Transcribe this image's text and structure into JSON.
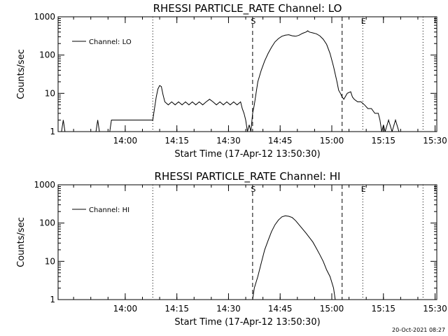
{
  "stamp": "20-Oct-2021 08:27",
  "chart_data": [
    {
      "type": "line",
      "title": "RHESSI PARTICLE_RATE Channel: LO",
      "xlabel": "Start Time (17-Apr-12 13:50:30)",
      "ylabel": "Counts/sec",
      "yscale": "log",
      "ylim": [
        1,
        1000
      ],
      "xlim_min": [
        -10,
        100
      ],
      "xticks": [
        {
          "v": 9.5,
          "label": "14:00"
        },
        {
          "v": 24.5,
          "label": "14:15"
        },
        {
          "v": 39.5,
          "label": "14:30"
        },
        {
          "v": 54.5,
          "label": "14:45"
        },
        {
          "v": 69.5,
          "label": "15:00"
        },
        {
          "v": 84.5,
          "label": "15:15"
        },
        {
          "v": 99.5,
          "label": "15:30"
        }
      ],
      "yticks": [
        {
          "v": 1,
          "label": "1"
        },
        {
          "v": 10,
          "label": "10"
        },
        {
          "v": 100,
          "label": "100"
        },
        {
          "v": 1000,
          "label": "1000"
        }
      ],
      "legend": {
        "label": "Channel: LO",
        "position": "top-left"
      },
      "vlines": [
        {
          "x": 17.5,
          "style": "dotted",
          "label": ""
        },
        {
          "x": 46.5,
          "style": "dashed",
          "label": "S"
        },
        {
          "x": 72.5,
          "style": "dashed",
          "label": ""
        },
        {
          "x": 78.5,
          "style": "dotted",
          "label": "E"
        },
        {
          "x": 96.0,
          "style": "dotted",
          "label": ""
        }
      ],
      "series": [
        {
          "name": "Channel: LO",
          "points": [
            [
              -10,
              1
            ],
            [
              -9,
              1
            ],
            [
              -8.5,
              2
            ],
            [
              -8,
              1
            ],
            [
              -6,
              1
            ],
            [
              -4,
              1
            ],
            [
              0,
              1
            ],
            [
              1,
              1
            ],
            [
              1.5,
              2
            ],
            [
              2,
              1
            ],
            [
              5,
              1
            ],
            [
              5.5,
              2
            ],
            [
              10,
              2
            ],
            [
              13,
              2
            ],
            [
              16,
              2
            ],
            [
              17.5,
              2
            ],
            [
              18,
              4
            ],
            [
              18.5,
              8
            ],
            [
              19,
              13
            ],
            [
              19.5,
              16
            ],
            [
              20,
              15
            ],
            [
              20.5,
              9
            ],
            [
              21,
              6
            ],
            [
              22,
              5
            ],
            [
              23,
              6
            ],
            [
              24,
              5
            ],
            [
              25,
              6
            ],
            [
              26,
              5
            ],
            [
              27,
              6
            ],
            [
              28,
              5
            ],
            [
              29,
              6
            ],
            [
              30,
              5
            ],
            [
              31,
              6
            ],
            [
              32,
              5
            ],
            [
              33,
              6
            ],
            [
              34,
              7
            ],
            [
              35,
              6
            ],
            [
              36,
              5
            ],
            [
              37,
              6
            ],
            [
              38,
              5
            ],
            [
              39,
              6
            ],
            [
              40,
              5
            ],
            [
              41,
              6
            ],
            [
              42,
              5
            ],
            [
              43,
              6
            ],
            [
              43.5,
              4
            ],
            [
              44,
              3
            ],
            [
              44.5,
              2
            ],
            [
              45,
              1
            ],
            [
              45.5,
              1.5
            ],
            [
              46,
              1
            ],
            [
              46.5,
              3
            ],
            [
              47,
              5
            ],
            [
              47.5,
              10
            ],
            [
              48,
              20
            ],
            [
              49,
              40
            ],
            [
              50,
              70
            ],
            [
              51,
              110
            ],
            [
              52,
              160
            ],
            [
              53,
              220
            ],
            [
              54,
              270
            ],
            [
              55,
              310
            ],
            [
              56,
              330
            ],
            [
              57,
              340
            ],
            [
              58,
              320
            ],
            [
              59,
              310
            ],
            [
              60,
              330
            ],
            [
              61,
              370
            ],
            [
              62,
              400
            ],
            [
              62.5,
              430
            ],
            [
              63,
              400
            ],
            [
              64,
              380
            ],
            [
              65,
              360
            ],
            [
              66,
              320
            ],
            [
              67,
              260
            ],
            [
              68,
              190
            ],
            [
              69,
              110
            ],
            [
              70,
              50
            ],
            [
              71,
              20
            ],
            [
              71.5,
              12
            ],
            [
              72,
              10
            ],
            [
              72.5,
              8
            ],
            [
              73,
              7
            ],
            [
              74,
              10
            ],
            [
              75,
              11
            ],
            [
              75.5,
              8
            ],
            [
              76,
              7
            ],
            [
              77,
              6
            ],
            [
              78,
              6
            ],
            [
              79,
              5
            ],
            [
              80,
              4
            ],
            [
              81,
              4
            ],
            [
              82,
              3
            ],
            [
              83,
              3
            ],
            [
              83.5,
              2
            ],
            [
              84,
              1
            ],
            [
              84.5,
              1.5
            ],
            [
              85,
              1
            ],
            [
              86,
              2
            ],
            [
              87,
              1
            ],
            [
              88,
              2
            ],
            [
              89,
              1
            ],
            [
              90,
              1
            ]
          ]
        }
      ]
    },
    {
      "type": "line",
      "title": "RHESSI PARTICLE_RATE Channel: HI",
      "xlabel": "Start Time (17-Apr-12 13:50:30)",
      "ylabel": "Counts/sec",
      "yscale": "log",
      "ylim": [
        1,
        1000
      ],
      "xlim_min": [
        -10,
        100
      ],
      "xticks": [
        {
          "v": 9.5,
          "label": "14:00"
        },
        {
          "v": 24.5,
          "label": "14:15"
        },
        {
          "v": 39.5,
          "label": "14:30"
        },
        {
          "v": 54.5,
          "label": "14:45"
        },
        {
          "v": 69.5,
          "label": "15:00"
        },
        {
          "v": 84.5,
          "label": "15:15"
        },
        {
          "v": 99.5,
          "label": "15:30"
        }
      ],
      "yticks": [
        {
          "v": 1,
          "label": "1"
        },
        {
          "v": 10,
          "label": "10"
        },
        {
          "v": 100,
          "label": "100"
        },
        {
          "v": 1000,
          "label": "1000"
        }
      ],
      "legend": {
        "label": "Channel: HI",
        "position": "top-left"
      },
      "vlines": [
        {
          "x": 17.5,
          "style": "dotted",
          "label": ""
        },
        {
          "x": 46.5,
          "style": "dashed",
          "label": "S"
        },
        {
          "x": 72.5,
          "style": "dashed",
          "label": ""
        },
        {
          "x": 78.5,
          "style": "dotted",
          "label": "E"
        },
        {
          "x": 96.0,
          "style": "dotted",
          "label": ""
        }
      ],
      "series": [
        {
          "name": "Channel: HI",
          "points": [
            [
              46.5,
              1
            ],
            [
              47,
              2
            ],
            [
              48,
              4
            ],
            [
              49,
              9
            ],
            [
              50,
              20
            ],
            [
              51,
              35
            ],
            [
              52,
              60
            ],
            [
              53,
              90
            ],
            [
              54,
              120
            ],
            [
              55,
              145
            ],
            [
              56,
              155
            ],
            [
              57,
              150
            ],
            [
              58,
              140
            ],
            [
              59,
              115
            ],
            [
              60,
              90
            ],
            [
              61,
              70
            ],
            [
              62,
              55
            ],
            [
              63,
              42
            ],
            [
              64,
              32
            ],
            [
              65,
              22
            ],
            [
              66,
              15
            ],
            [
              67,
              10
            ],
            [
              68,
              6
            ],
            [
              69,
              4
            ],
            [
              70,
              2
            ],
            [
              70.5,
              1
            ]
          ]
        }
      ]
    }
  ]
}
